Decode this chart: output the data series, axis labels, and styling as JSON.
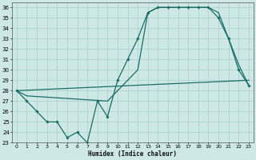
{
  "xlabel": "Humidex (Indice chaleur)",
  "background_color": "#cde8e5",
  "grid_color": "#aacfcc",
  "line_color": "#1a6e65",
  "xlim": [
    -0.5,
    23.5
  ],
  "ylim": [
    23,
    36.5
  ],
  "xticks": [
    0,
    1,
    2,
    3,
    4,
    5,
    6,
    7,
    8,
    9,
    10,
    11,
    12,
    13,
    14,
    15,
    16,
    17,
    18,
    19,
    20,
    21,
    22,
    23
  ],
  "yticks": [
    23,
    24,
    25,
    26,
    27,
    28,
    29,
    30,
    31,
    32,
    33,
    34,
    35,
    36
  ],
  "line1_x": [
    0,
    1,
    2,
    3,
    4,
    5,
    6,
    7,
    8,
    9,
    10,
    11,
    12,
    13,
    14,
    15,
    16,
    17,
    18,
    19,
    20,
    21,
    22,
    23
  ],
  "line1_y": [
    28,
    27,
    26,
    25,
    25,
    23.5,
    24,
    23,
    27,
    25.5,
    29,
    31,
    33,
    35.5,
    36,
    36,
    36,
    36,
    36,
    36,
    35,
    33,
    30,
    28.5
  ],
  "line2_x": [
    0,
    1,
    9,
    12,
    13,
    14,
    15,
    16,
    17,
    18,
    19,
    20,
    21,
    22,
    23
  ],
  "line2_y": [
    28,
    27.5,
    27,
    30,
    35.5,
    36,
    36,
    36,
    36,
    36,
    36,
    35.5,
    33,
    30.5,
    28.5
  ],
  "line3_x": [
    0,
    23
  ],
  "line3_y": [
    28,
    29
  ],
  "marker_x": [
    0,
    1,
    2,
    3,
    4,
    5,
    6,
    7,
    8,
    9,
    10,
    11,
    12,
    13,
    14,
    15,
    16,
    17,
    18,
    19,
    20,
    21,
    22,
    23
  ],
  "marker_y": [
    28,
    27,
    26,
    25,
    25,
    23.5,
    24,
    23,
    27,
    25.5,
    29,
    31,
    33,
    35.5,
    36,
    36,
    36,
    36,
    36,
    36,
    35,
    33,
    30,
    28.5
  ]
}
